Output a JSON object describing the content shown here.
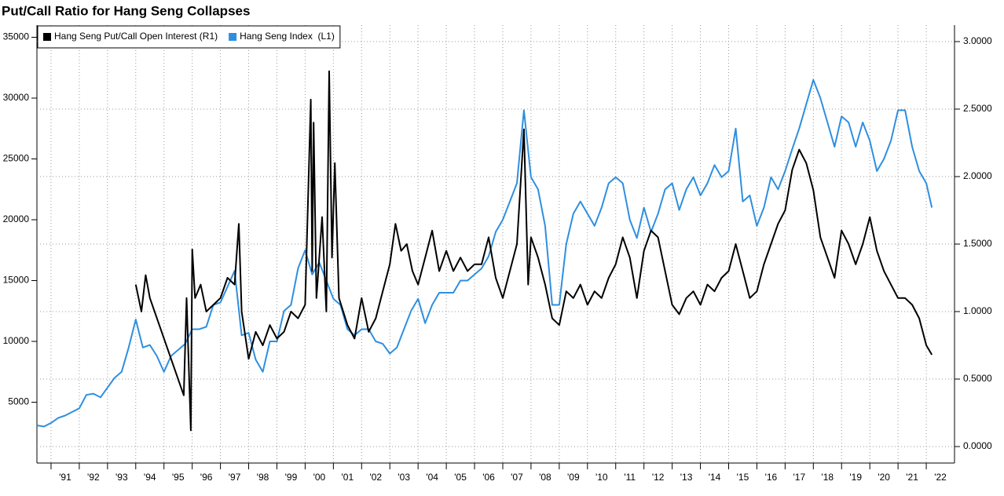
{
  "chart_data": {
    "type": "line",
    "title": "Put/Call Ratio for Hang Seng Collapses",
    "xlim": [
      1990.5,
      2023
    ],
    "xticks": [
      {
        "value": 1991,
        "label": "'91"
      },
      {
        "value": 1992,
        "label": "'92"
      },
      {
        "value": 1993,
        "label": "'93"
      },
      {
        "value": 1994,
        "label": "'94"
      },
      {
        "value": 1995,
        "label": "'95"
      },
      {
        "value": 1996,
        "label": "'96"
      },
      {
        "value": 1997,
        "label": "'97"
      },
      {
        "value": 1998,
        "label": "'98"
      },
      {
        "value": 1999,
        "label": "'99"
      },
      {
        "value": 2000,
        "label": "'00"
      },
      {
        "value": 2001,
        "label": "'01"
      },
      {
        "value": 2002,
        "label": "'02"
      },
      {
        "value": 2003,
        "label": "'03"
      },
      {
        "value": 2004,
        "label": "'04"
      },
      {
        "value": 2005,
        "label": "'05"
      },
      {
        "value": 2006,
        "label": "'06"
      },
      {
        "value": 2007,
        "label": "'07"
      },
      {
        "value": 2008,
        "label": "'08"
      },
      {
        "value": 2009,
        "label": "'09"
      },
      {
        "value": 2010,
        "label": "'10"
      },
      {
        "value": 2011,
        "label": "'11"
      },
      {
        "value": 2012,
        "label": "'12"
      },
      {
        "value": 2013,
        "label": "'13"
      },
      {
        "value": 2014,
        "label": "'14"
      },
      {
        "value": 2015,
        "label": "'15"
      },
      {
        "value": 2016,
        "label": "'16"
      },
      {
        "value": 2017,
        "label": "'17"
      },
      {
        "value": 2018,
        "label": "'18"
      },
      {
        "value": 2019,
        "label": "'19"
      },
      {
        "value": 2020,
        "label": "'20"
      },
      {
        "value": 2021,
        "label": "'21"
      },
      {
        "value": 2022,
        "label": "'22"
      }
    ],
    "ylim": [
      0,
      36000
    ],
    "yticks": [
      5000,
      10000,
      15000,
      20000,
      25000,
      30000,
      35000
    ],
    "y2lim": [
      -0.122,
      3.122
    ],
    "y2ticks": [
      {
        "value": 0,
        "label": "0.0000"
      },
      {
        "value": 0.5,
        "label": "0.5000"
      },
      {
        "value": 1,
        "label": "1.0000"
      },
      {
        "value": 1.5,
        "label": "1.5000"
      },
      {
        "value": 2,
        "label": "2.0000"
      },
      {
        "value": 2.5,
        "label": "2.5000"
      },
      {
        "value": 3,
        "label": "3.0000"
      }
    ],
    "grid": true,
    "legend": "upper left",
    "series": [
      {
        "name": "Hang Seng Put/Call Open Interest (R1)",
        "color": "#000000",
        "axis": "y2",
        "x": [
          1994.0,
          1994.2,
          1994.35,
          1994.5,
          1995.7,
          1995.8,
          1995.95,
          1996.0,
          1996.1,
          1996.3,
          1996.5,
          1996.75,
          1997.0,
          1997.25,
          1997.5,
          1997.65,
          1997.75,
          1998.0,
          1998.25,
          1998.5,
          1998.75,
          1999.0,
          1999.25,
          1999.5,
          1999.75,
          2000.0,
          2000.2,
          2000.25,
          2000.3,
          2000.4,
          2000.6,
          2000.75,
          2000.85,
          2000.95,
          2001.05,
          2001.2,
          2001.5,
          2001.75,
          2002.0,
          2002.25,
          2002.5,
          2002.75,
          2003.0,
          2003.2,
          2003.4,
          2003.6,
          2003.8,
          2004.0,
          2004.25,
          2004.5,
          2004.75,
          2005.0,
          2005.25,
          2005.5,
          2005.75,
          2006.0,
          2006.25,
          2006.5,
          2006.75,
          2007.0,
          2007.25,
          2007.5,
          2007.75,
          2007.9,
          2008.0,
          2008.25,
          2008.5,
          2008.75,
          2009.0,
          2009.25,
          2009.5,
          2009.75,
          2010.0,
          2010.25,
          2010.5,
          2010.75,
          2011.0,
          2011.25,
          2011.5,
          2011.75,
          2012.0,
          2012.25,
          2012.5,
          2012.75,
          2013.0,
          2013.25,
          2013.5,
          2013.75,
          2014.0,
          2014.25,
          2014.5,
          2014.75,
          2015.0,
          2015.25,
          2015.5,
          2015.75,
          2016.0,
          2016.25,
          2016.5,
          2016.75,
          2017.0,
          2017.25,
          2017.5,
          2017.75,
          2018.0,
          2018.25,
          2018.5,
          2018.75,
          2019.0,
          2019.25,
          2019.5,
          2019.75,
          2020.0,
          2020.25,
          2020.5,
          2020.75,
          2021.0,
          2021.25,
          2021.5,
          2021.75,
          2022.0,
          2022.2
        ],
        "values": [
          1.2,
          1.0,
          1.27,
          1.1,
          0.38,
          1.1,
          0.12,
          1.46,
          1.1,
          1.2,
          1.0,
          1.05,
          1.1,
          1.25,
          1.2,
          1.65,
          1.0,
          0.65,
          0.85,
          0.75,
          0.9,
          0.8,
          0.85,
          1.0,
          0.95,
          1.05,
          2.57,
          1.3,
          2.4,
          1.1,
          1.7,
          1.0,
          2.78,
          1.4,
          2.1,
          1.1,
          0.9,
          0.8,
          1.1,
          0.85,
          0.95,
          1.15,
          1.35,
          1.65,
          1.45,
          1.5,
          1.3,
          1.2,
          1.4,
          1.6,
          1.3,
          1.45,
          1.3,
          1.4,
          1.3,
          1.35,
          1.35,
          1.55,
          1.25,
          1.1,
          1.3,
          1.5,
          2.35,
          1.2,
          1.55,
          1.4,
          1.2,
          0.95,
          0.9,
          1.15,
          1.1,
          1.2,
          1.05,
          1.15,
          1.1,
          1.25,
          1.35,
          1.55,
          1.4,
          1.1,
          1.45,
          1.6,
          1.55,
          1.3,
          1.05,
          0.98,
          1.1,
          1.15,
          1.05,
          1.2,
          1.15,
          1.25,
          1.3,
          1.5,
          1.3,
          1.1,
          1.15,
          1.35,
          1.5,
          1.65,
          1.75,
          2.05,
          2.2,
          2.1,
          1.9,
          1.55,
          1.4,
          1.25,
          1.6,
          1.5,
          1.35,
          1.5,
          1.7,
          1.45,
          1.3,
          1.2,
          1.1,
          1.1,
          1.05,
          0.95,
          0.75,
          0.68
        ]
      },
      {
        "name": "Hang Seng Index  (L1)",
        "color": "#2e8fe0",
        "x": [
          1990.5,
          1990.75,
          1991.0,
          1991.25,
          1991.5,
          1991.75,
          1992.0,
          1992.25,
          1992.5,
          1992.75,
          1993.0,
          1993.25,
          1993.5,
          1993.75,
          1994.0,
          1994.25,
          1994.5,
          1994.75,
          1995.0,
          1995.25,
          1995.5,
          1995.75,
          1996.0,
          1996.25,
          1996.5,
          1996.75,
          1997.0,
          1997.25,
          1997.5,
          1997.75,
          1998.0,
          1998.25,
          1998.5,
          1998.75,
          1999.0,
          1999.25,
          1999.5,
          1999.75,
          2000.0,
          2000.25,
          2000.5,
          2000.75,
          2001.0,
          2001.25,
          2001.5,
          2001.75,
          2002.0,
          2002.25,
          2002.5,
          2002.75,
          2003.0,
          2003.25,
          2003.5,
          2003.75,
          2004.0,
          2004.25,
          2004.5,
          2004.75,
          2005.0,
          2005.25,
          2005.5,
          2005.75,
          2006.0,
          2006.25,
          2006.5,
          2006.75,
          2007.0,
          2007.25,
          2007.5,
          2007.75,
          2008.0,
          2008.25,
          2008.5,
          2008.75,
          2009.0,
          2009.25,
          2009.5,
          2009.75,
          2010.0,
          2010.25,
          2010.5,
          2010.75,
          2011.0,
          2011.25,
          2011.5,
          2011.75,
          2012.0,
          2012.25,
          2012.5,
          2012.75,
          2013.0,
          2013.25,
          2013.5,
          2013.75,
          2014.0,
          2014.25,
          2014.5,
          2014.75,
          2015.0,
          2015.25,
          2015.5,
          2015.75,
          2016.0,
          2016.25,
          2016.5,
          2016.75,
          2017.0,
          2017.25,
          2017.5,
          2017.75,
          2018.0,
          2018.25,
          2018.5,
          2018.75,
          2019.0,
          2019.25,
          2019.5,
          2019.75,
          2020.0,
          2020.25,
          2020.5,
          2020.75,
          2021.0,
          2021.25,
          2021.5,
          2021.75,
          2022.0,
          2022.2
        ],
        "values": [
          3100,
          3000,
          3300,
          3700,
          3900,
          4200,
          4500,
          5600,
          5700,
          5400,
          6200,
          7000,
          7500,
          9500,
          11800,
          9500,
          9700,
          8800,
          7500,
          8800,
          9300,
          9800,
          11000,
          11000,
          11200,
          13000,
          13200,
          14500,
          15800,
          10500,
          10700,
          8500,
          7500,
          10000,
          10000,
          12500,
          13000,
          16000,
          17500,
          15500,
          16500,
          15000,
          13500,
          13000,
          11000,
          10500,
          11000,
          11000,
          10000,
          9800,
          9000,
          9500,
          11000,
          12500,
          13500,
          11500,
          13000,
          14000,
          14000,
          14000,
          15000,
          15000,
          15500,
          16000,
          17000,
          19000,
          20000,
          21500,
          23000,
          29000,
          23500,
          22500,
          19500,
          13000,
          13000,
          18000,
          20500,
          21500,
          20500,
          19500,
          21000,
          23000,
          23500,
          23000,
          20000,
          18500,
          21000,
          19000,
          20500,
          22500,
          23000,
          20800,
          22500,
          23500,
          22000,
          23000,
          24500,
          23500,
          24000,
          27500,
          21500,
          22000,
          19500,
          21000,
          23500,
          22500,
          24000,
          25800,
          27500,
          29500,
          31500,
          30000,
          28000,
          26000,
          28500,
          28000,
          26000,
          28000,
          26500,
          24000,
          25000,
          26500,
          29000,
          29000,
          26000,
          24000,
          23000,
          21000
        ]
      }
    ]
  }
}
